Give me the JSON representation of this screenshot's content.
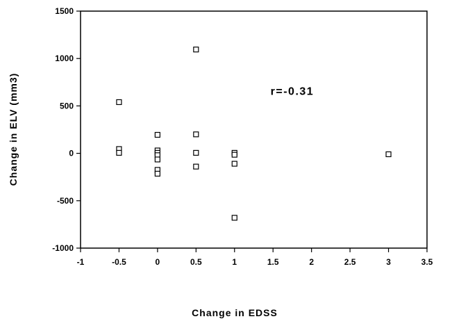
{
  "chart_data": {
    "type": "scatter",
    "xlabel": "Change in EDSS",
    "ylabel": "Change in ELV (mm3)",
    "xlim": [
      -1,
      3.5
    ],
    "ylim": [
      -1000,
      1500
    ],
    "xticks": [
      -1,
      -0.5,
      0,
      0.5,
      1,
      1.5,
      2,
      2.5,
      3,
      3.5
    ],
    "xtick_labels": [
      "-1",
      "-0.5",
      "0",
      "0.5",
      "1",
      "1.5",
      "2",
      "2.5",
      "3",
      "3.5"
    ],
    "yticks": [
      -1000,
      -500,
      0,
      500,
      1000,
      1500
    ],
    "ytick_labels": [
      "-1000",
      "-500",
      "0",
      "500",
      "1000",
      "1500"
    ],
    "grid": false,
    "marker": "open-square",
    "annotation": {
      "text": "r=-0.31",
      "x": 1.75,
      "y": 660
    },
    "points": [
      {
        "x": -0.5,
        "y": 540
      },
      {
        "x": -0.5,
        "y": 45
      },
      {
        "x": -0.5,
        "y": 5
      },
      {
        "x": 0,
        "y": 195
      },
      {
        "x": 0,
        "y": 30
      },
      {
        "x": 0,
        "y": 5
      },
      {
        "x": 0,
        "y": -20
      },
      {
        "x": 0,
        "y": -65
      },
      {
        "x": 0,
        "y": -175
      },
      {
        "x": 0,
        "y": -215
      },
      {
        "x": 0.5,
        "y": 1095
      },
      {
        "x": 0.5,
        "y": 200
      },
      {
        "x": 0.5,
        "y": 5
      },
      {
        "x": 0.5,
        "y": -140
      },
      {
        "x": 1,
        "y": 5
      },
      {
        "x": 1,
        "y": -15
      },
      {
        "x": 1,
        "y": -110
      },
      {
        "x": 1,
        "y": -680
      },
      {
        "x": 3,
        "y": -10
      }
    ]
  }
}
